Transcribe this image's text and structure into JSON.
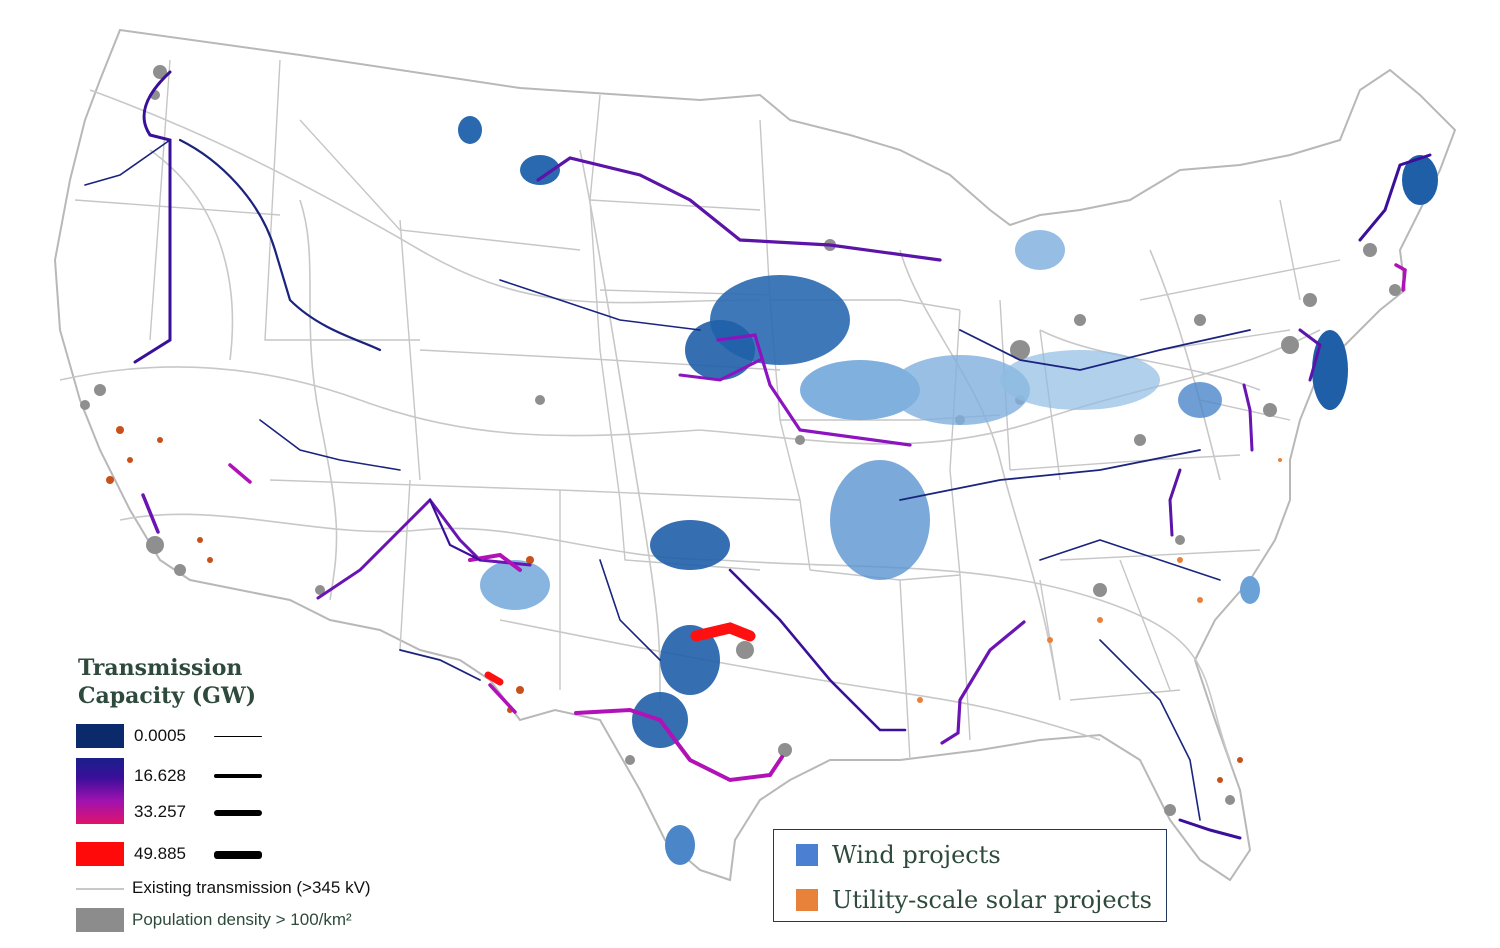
{
  "legend_capacity": {
    "title_line1": "Transmission",
    "title_line2": "Capacity (GW)",
    "levels": [
      {
        "label": "0.0005",
        "color": "#0b2a6b"
      },
      {
        "label": "16.628",
        "color": "#3a0f9a"
      },
      {
        "label": "33.257",
        "color": "#c0148e"
      },
      {
        "label": "49.885",
        "color": "#ff0a0a"
      }
    ],
    "existing_label": "Existing transmission (>345 kV)",
    "population_label": "Population density > 100/km²"
  },
  "legend_projects": {
    "wind_label": "Wind projects",
    "wind_color": "#4a7fd1",
    "solar_label": "Utility-scale solar projects",
    "solar_color": "#e8823a"
  },
  "colors": {
    "new_line_dark": "#1a237e",
    "new_line_purple": "#5b14a8",
    "new_line_magenta": "#b012b8",
    "new_line_red": "#ff1010",
    "existing_line": "#c4c4c4",
    "state_border": "#b8b8b8",
    "population": "#8f8f8f",
    "wind_dark": "#1f5fa8",
    "wind_light": "#7fb0dd",
    "solar": "#c8501a"
  }
}
